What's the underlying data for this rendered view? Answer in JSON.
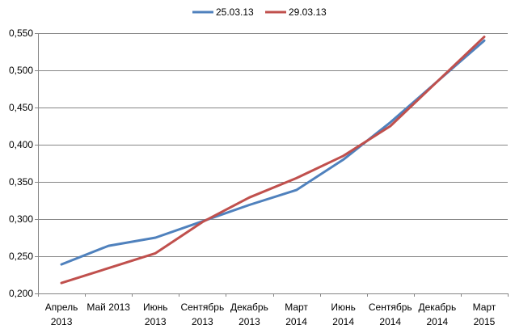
{
  "chart_data": {
    "type": "line",
    "title": "",
    "xlabel": "",
    "ylabel": "",
    "categories": [
      [
        "Апрель",
        "2013"
      ],
      [
        "Май 2013"
      ],
      [
        "Июнь",
        "2013"
      ],
      [
        "Сентябрь",
        "2013"
      ],
      [
        "Декабрь",
        "2013"
      ],
      [
        "Март",
        "2014"
      ],
      [
        "Июнь",
        "2014"
      ],
      [
        "Сентябрь",
        "2014"
      ],
      [
        "Декабрь",
        "2014"
      ],
      [
        "Март",
        "2015"
      ]
    ],
    "yticks": [
      "0,200",
      "0,250",
      "0,300",
      "0,350",
      "0,400",
      "0,450",
      "0,500",
      "0,550"
    ],
    "ylim": [
      0.2,
      0.55
    ],
    "grid": true,
    "legend_position": "top",
    "series": [
      {
        "name": "25.03.13",
        "color": "#4F81BD",
        "values": [
          0.239,
          0.264,
          0.275,
          0.297,
          0.319,
          0.339,
          0.38,
          0.43,
          0.485,
          0.54
        ]
      },
      {
        "name": "29.03.13",
        "color": "#C0504D",
        "values": [
          0.214,
          0.234,
          0.254,
          0.296,
          0.329,
          0.355,
          0.385,
          0.425,
          0.485,
          0.545
        ]
      }
    ]
  }
}
